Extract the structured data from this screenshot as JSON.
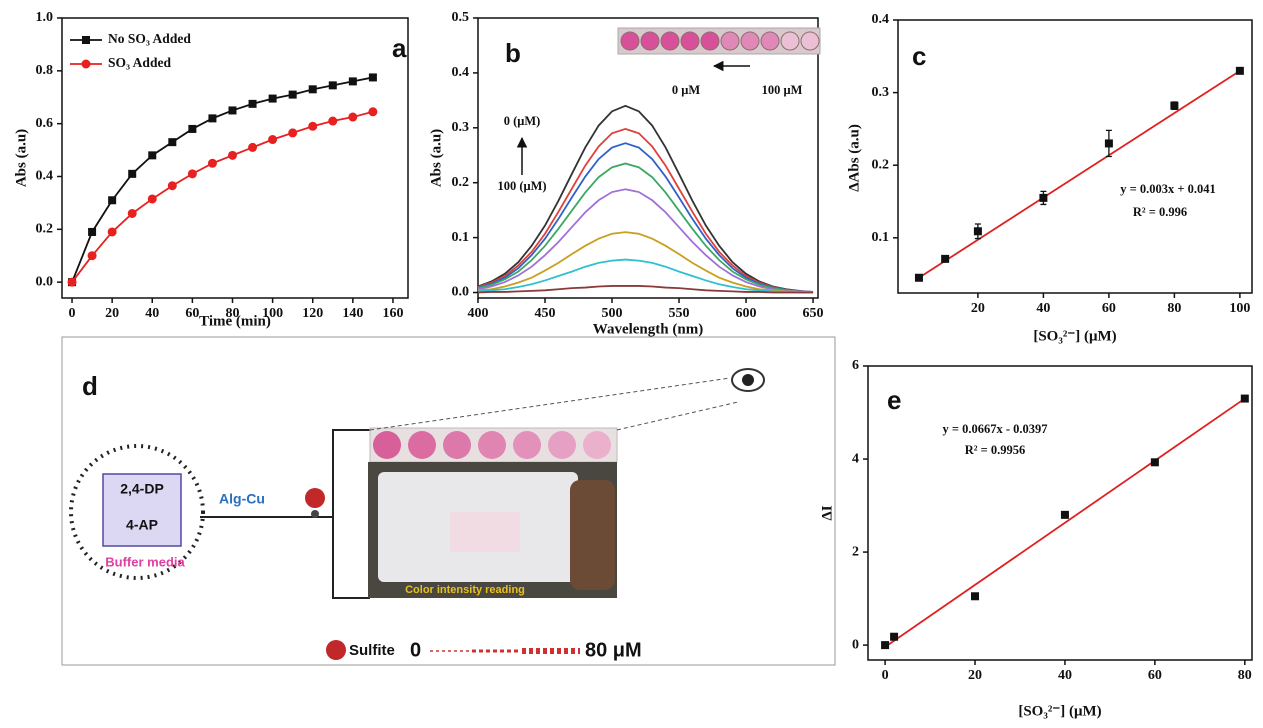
{
  "chart_data": [
    {
      "type": "line",
      "panel_label": "a",
      "x_label": "Time (min)",
      "y_label": "Abs (a.u)",
      "x": [
        0,
        10,
        20,
        30,
        40,
        50,
        60,
        70,
        80,
        90,
        100,
        110,
        120,
        130,
        140,
        150
      ],
      "series": [
        {
          "name": "No SO₃ Added",
          "color": "#111111",
          "marker": "square",
          "values": [
            0,
            0.19,
            0.31,
            0.41,
            0.48,
            0.53,
            0.58,
            0.62,
            0.65,
            0.675,
            0.695,
            0.71,
            0.73,
            0.745,
            0.76,
            0.775
          ]
        },
        {
          "name": "SO₃ Added",
          "color": "#e82020",
          "marker": "circle",
          "values": [
            0,
            0.1,
            0.19,
            0.26,
            0.315,
            0.365,
            0.41,
            0.45,
            0.48,
            0.51,
            0.54,
            0.565,
            0.59,
            0.61,
            0.625,
            0.645
          ]
        }
      ],
      "xlim": [
        -5,
        167.5
      ],
      "ylim": [
        -0.06,
        1.0
      ],
      "xticks": [
        0,
        20,
        40,
        60,
        80,
        100,
        120,
        140,
        160
      ],
      "yticks": [
        {
          "value": 0,
          "label": "0.0"
        },
        0.2,
        0.4,
        0.6,
        0.8,
        {
          "value": 1,
          "label": "1.0"
        }
      ],
      "grid": false,
      "legend": "upper left"
    },
    {
      "type": "line",
      "panel_label": "b",
      "x_label": "Wavelength (nm)",
      "y_label": "Abs (a.u)",
      "x": [
        400,
        410,
        420,
        430,
        440,
        450,
        460,
        470,
        480,
        490,
        500,
        510,
        520,
        530,
        540,
        550,
        560,
        570,
        580,
        590,
        600,
        610,
        620,
        630,
        640,
        650
      ],
      "series": [
        {
          "color": "#333333",
          "values": [
            0.011,
            0.02,
            0.034,
            0.055,
            0.085,
            0.122,
            0.167,
            0.216,
            0.264,
            0.304,
            0.33,
            0.34,
            0.33,
            0.304,
            0.264,
            0.216,
            0.167,
            0.122,
            0.085,
            0.055,
            0.034,
            0.02,
            0.011,
            0.006,
            0.003,
            0.001
          ]
        },
        {
          "color": "#e0403a",
          "values": [
            0.01,
            0.018,
            0.03,
            0.049,
            0.074,
            0.107,
            0.147,
            0.189,
            0.231,
            0.266,
            0.29,
            0.298,
            0.29,
            0.266,
            0.231,
            0.189,
            0.147,
            0.107,
            0.074,
            0.049,
            0.03,
            0.018,
            0.01,
            0.005,
            0.002,
            0.001
          ]
        },
        {
          "color": "#2f62c8",
          "values": [
            0.009,
            0.016,
            0.027,
            0.044,
            0.068,
            0.098,
            0.134,
            0.173,
            0.211,
            0.243,
            0.264,
            0.272,
            0.264,
            0.243,
            0.211,
            0.173,
            0.134,
            0.098,
            0.068,
            0.044,
            0.027,
            0.016,
            0.009,
            0.005,
            0.002,
            0.001
          ]
        },
        {
          "color": "#3aa860",
          "values": [
            0.008,
            0.014,
            0.024,
            0.038,
            0.059,
            0.085,
            0.116,
            0.149,
            0.182,
            0.21,
            0.228,
            0.235,
            0.228,
            0.21,
            0.182,
            0.149,
            0.116,
            0.085,
            0.059,
            0.038,
            0.024,
            0.014,
            0.008,
            0.004,
            0.002,
            0.001
          ]
        },
        {
          "color": "#a070d8",
          "values": [
            0.006,
            0.011,
            0.019,
            0.031,
            0.047,
            0.068,
            0.092,
            0.119,
            0.146,
            0.168,
            0.183,
            0.188,
            0.183,
            0.168,
            0.146,
            0.119,
            0.092,
            0.068,
            0.047,
            0.031,
            0.019,
            0.011,
            0.006,
            0.003,
            0.002,
            0.001
          ]
        },
        {
          "color": "#c8a020",
          "values": [
            0.004,
            0.006,
            0.011,
            0.018,
            0.027,
            0.04,
            0.054,
            0.07,
            0.085,
            0.098,
            0.107,
            0.11,
            0.107,
            0.098,
            0.085,
            0.07,
            0.054,
            0.04,
            0.027,
            0.018,
            0.011,
            0.006,
            0.004,
            0.002,
            0.001,
            0
          ]
        },
        {
          "color": "#30c0d0",
          "values": [
            0.002,
            0.004,
            0.006,
            0.01,
            0.015,
            0.022,
            0.03,
            0.038,
            0.047,
            0.054,
            0.058,
            0.06,
            0.058,
            0.054,
            0.047,
            0.038,
            0.03,
            0.022,
            0.015,
            0.01,
            0.006,
            0.004,
            0.002,
            0.001,
            0,
            0
          ]
        },
        {
          "color": "#8a3a3a",
          "values": [
            0,
            0.001,
            0.001,
            0.002,
            0.003,
            0.004,
            0.006,
            0.008,
            0.009,
            0.011,
            0.012,
            0.012,
            0.012,
            0.011,
            0.009,
            0.008,
            0.006,
            0.004,
            0.003,
            0.002,
            0.001,
            0.001,
            0,
            0,
            0,
            0
          ]
        }
      ],
      "annotations": [
        "0 (μM)",
        "100 (μM)",
        "0 μM",
        "100 μM"
      ],
      "xlim": [
        400,
        653.7
      ],
      "ylim": [
        -0.01,
        0.5
      ],
      "xticks": [
        400,
        450,
        500,
        550,
        600,
        650
      ],
      "yticks": [
        {
          "value": 0,
          "label": "0.0"
        },
        0.1,
        0.2,
        0.3,
        0.4,
        0.5
      ],
      "grid": false
    },
    {
      "type": "scatter",
      "panel_label": "c",
      "x_label": "[SO₃²⁻] (μM)",
      "y_label": "ΔAbs (a.u)",
      "x": [
        2,
        10,
        20,
        40,
        60,
        80,
        100
      ],
      "values": [
        0.045,
        0.071,
        0.109,
        0.155,
        0.23,
        0.282,
        0.33
      ],
      "errors": [
        0.002,
        0.002,
        0.01,
        0.009,
        0.018,
        0.005,
        0.002
      ],
      "color": "#111111",
      "fit_line": {
        "color": "#e02020",
        "x": [
          2,
          100
        ],
        "values": [
          0.045,
          0.33
        ]
      },
      "annotations": [
        "y = 0.003x + 0.041",
        "R² = 0.996"
      ],
      "xlim": [
        -4.4,
        103.7
      ],
      "ylim": [
        0.024,
        0.4
      ],
      "xticks": [
        20,
        40,
        60,
        80,
        100
      ],
      "yticks": [
        0.1,
        0.2,
        0.3,
        0.4
      ],
      "grid": false
    },
    {
      "type": "scatter",
      "panel_label": "e",
      "x_label": "[SO₃²⁻] (μM)",
      "y_label": "ΔI",
      "x": [
        0,
        2,
        20,
        40,
        60,
        80
      ],
      "values": [
        0,
        0.18,
        1.05,
        2.8,
        3.93,
        5.3
      ],
      "color": "#111111",
      "fit_line": {
        "color": "#e02020",
        "x": [
          0,
          80
        ],
        "values": [
          -0.04,
          5.3
        ]
      },
      "annotations": [
        "y = 0.0667x - 0.0397",
        "R² = 0.9956"
      ],
      "xlim": [
        -3.8,
        81.6
      ],
      "ylim": [
        -0.32,
        6
      ],
      "xticks": [
        0,
        20,
        40,
        60,
        80
      ],
      "yticks": [
        0,
        2,
        4,
        6
      ],
      "grid": false
    }
  ],
  "diagram": {
    "panel_label": "d",
    "reagent_1": "2,4-DP",
    "reagent_2": "4-AP",
    "medium": "Buffer media",
    "catalyst": "Alg-Cu",
    "readout": "Color intensity reading",
    "analyte": "Sulfite",
    "range_start": "0",
    "range_end": "80 μM"
  }
}
